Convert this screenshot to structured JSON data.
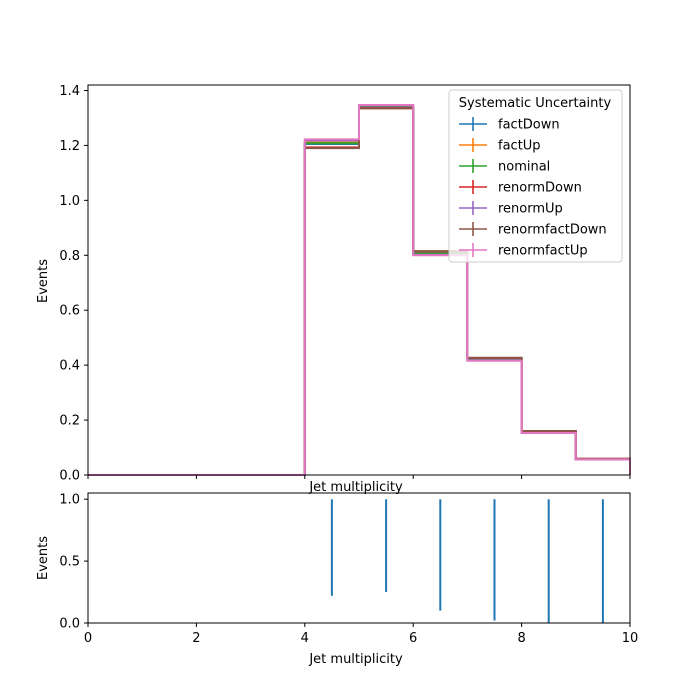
{
  "chart_data": [
    {
      "type": "line",
      "step": true,
      "xlabel": "Jet multiplicity",
      "ylabel": "Events",
      "xlim": [
        0,
        10
      ],
      "ylim": [
        0,
        1.42
      ],
      "xticks": [
        0,
        2,
        4,
        6,
        8,
        10
      ],
      "show_xtick_labels": false,
      "yticks": [
        0.0,
        0.2,
        0.4,
        0.6,
        0.8,
        1.0,
        1.2,
        1.4
      ],
      "ytick_labels": [
        "0.0",
        "0.2",
        "0.4",
        "0.6",
        "0.8",
        "1.0",
        "1.2",
        "1.4"
      ],
      "grid": false,
      "legend": {
        "title": "Systematic Uncertainty",
        "placement": "top-right"
      },
      "bin_edges": [
        0,
        1,
        2,
        3,
        4,
        5,
        6,
        7,
        8,
        9,
        10
      ],
      "series": [
        {
          "name": "factDown",
          "color": "#1f77b4",
          "values": [
            0,
            0,
            0,
            0,
            1.205,
            1.34,
            0.808,
            0.423,
            0.157,
            0.058
          ]
        },
        {
          "name": "factUp",
          "color": "#ff7f0e",
          "values": [
            0,
            0,
            0,
            0,
            1.21,
            1.342,
            0.806,
            0.421,
            0.156,
            0.058
          ]
        },
        {
          "name": "nominal",
          "color": "#2ca02c",
          "values": [
            0,
            0,
            0,
            0,
            1.208,
            1.341,
            0.807,
            0.422,
            0.157,
            0.058
          ]
        },
        {
          "name": "renormDown",
          "color": "#d62728",
          "values": [
            0,
            0,
            0,
            0,
            1.193,
            1.336,
            0.814,
            0.426,
            0.159,
            0.059
          ]
        },
        {
          "name": "renormUp",
          "color": "#9467bd",
          "values": [
            0,
            0,
            0,
            0,
            1.218,
            1.345,
            0.802,
            0.418,
            0.154,
            0.057
          ]
        },
        {
          "name": "renormfactDown",
          "color": "#8c564b",
          "values": [
            0,
            0,
            0,
            0,
            1.19,
            1.335,
            0.815,
            0.427,
            0.16,
            0.059
          ]
        },
        {
          "name": "renormfactUp",
          "color": "#e377c2",
          "values": [
            0,
            0,
            0,
            0,
            1.222,
            1.347,
            0.8,
            0.416,
            0.153,
            0.057
          ]
        }
      ]
    },
    {
      "type": "errorbar",
      "xlabel": "Jet multiplicity",
      "ylabel": "Events",
      "xlim": [
        0,
        10
      ],
      "ylim": [
        0,
        1.05
      ],
      "xticks": [
        0,
        2,
        4,
        6,
        8,
        10
      ],
      "xtick_labels": [
        "0",
        "2",
        "4",
        "6",
        "8",
        "10"
      ],
      "yticks": [
        0.0,
        0.5,
        1.0
      ],
      "ytick_labels": [
        "0.0",
        "0.5",
        "1.0"
      ],
      "grid": false,
      "color": "#1f77b4",
      "points": [
        {
          "x": 4.5,
          "low": 0.22,
          "high": 1.0
        },
        {
          "x": 5.5,
          "low": 0.25,
          "high": 1.0
        },
        {
          "x": 6.5,
          "low": 0.1,
          "high": 1.0
        },
        {
          "x": 7.5,
          "low": 0.02,
          "high": 1.0
        },
        {
          "x": 8.5,
          "low": 0.0,
          "high": 1.0
        },
        {
          "x": 9.5,
          "low": 0.0,
          "high": 1.0
        }
      ]
    }
  ]
}
